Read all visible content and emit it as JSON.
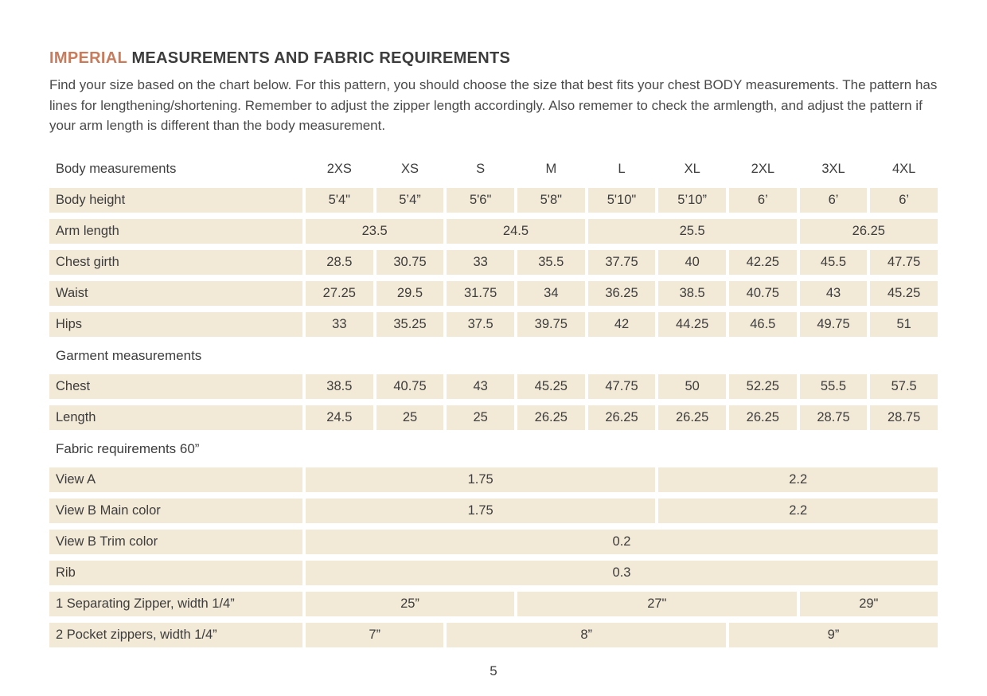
{
  "page": {
    "title_highlight": "IMPERIAL",
    "title_rest": " MEASUREMENTS AND FABRIC REQUIREMENTS",
    "intro": "Find your size based on the chart below. For this pattern, you should choose the size that best fits your chest BODY measurements. The pattern has lines for lengthening/shortening. Remember to adjust the zipper length accordingly. Also rememer to check the armlength, and adjust the pattern if your arm length is different than the body measurement.",
    "page_number": "5"
  },
  "colors": {
    "accent": "#c87c5c",
    "cell_background": "#f2e9d6",
    "text": "#3d3d3d"
  },
  "table": {
    "header": {
      "label": "Body measurements",
      "sizes": [
        "2XS",
        "XS",
        "S",
        "M",
        "L",
        "XL",
        "2XL",
        "3XL",
        "4XL"
      ]
    },
    "rows": [
      {
        "type": "data",
        "label": "Body height",
        "cells": [
          {
            "v": "5'4\"",
            "s": 1
          },
          {
            "v": "5’4”",
            "s": 1
          },
          {
            "v": "5'6\"",
            "s": 1
          },
          {
            "v": "5'8\"",
            "s": 1
          },
          {
            "v": "5'10\"",
            "s": 1
          },
          {
            "v": "5’10”",
            "s": 1
          },
          {
            "v": "6’",
            "s": 1
          },
          {
            "v": "6’",
            "s": 1
          },
          {
            "v": "6’",
            "s": 1
          }
        ]
      },
      {
        "type": "data",
        "label": "Arm length",
        "cells": [
          {
            "v": "23.5",
            "s": 2
          },
          {
            "v": "24.5",
            "s": 2
          },
          {
            "v": "25.5",
            "s": 3
          },
          {
            "v": "26.25",
            "s": 2
          }
        ]
      },
      {
        "type": "data",
        "label": "Chest girth",
        "cells": [
          {
            "v": "28.5",
            "s": 1
          },
          {
            "v": "30.75",
            "s": 1
          },
          {
            "v": "33",
            "s": 1
          },
          {
            "v": "35.5",
            "s": 1
          },
          {
            "v": "37.75",
            "s": 1
          },
          {
            "v": "40",
            "s": 1
          },
          {
            "v": "42.25",
            "s": 1
          },
          {
            "v": "45.5",
            "s": 1
          },
          {
            "v": "47.75",
            "s": 1
          }
        ]
      },
      {
        "type": "data",
        "label": "Waist",
        "cells": [
          {
            "v": "27.25",
            "s": 1
          },
          {
            "v": "29.5",
            "s": 1
          },
          {
            "v": "31.75",
            "s": 1
          },
          {
            "v": "34",
            "s": 1
          },
          {
            "v": "36.25",
            "s": 1
          },
          {
            "v": "38.5",
            "s": 1
          },
          {
            "v": "40.75",
            "s": 1
          },
          {
            "v": "43",
            "s": 1
          },
          {
            "v": "45.25",
            "s": 1
          }
        ]
      },
      {
        "type": "data",
        "label": "Hips",
        "cells": [
          {
            "v": "33",
            "s": 1
          },
          {
            "v": "35.25",
            "s": 1
          },
          {
            "v": "37.5",
            "s": 1
          },
          {
            "v": "39.75",
            "s": 1
          },
          {
            "v": "42",
            "s": 1
          },
          {
            "v": "44.25",
            "s": 1
          },
          {
            "v": "46.5",
            "s": 1
          },
          {
            "v": "49.75",
            "s": 1
          },
          {
            "v": "51",
            "s": 1
          }
        ]
      },
      {
        "type": "section",
        "label": "Garment measurements"
      },
      {
        "type": "data",
        "label": "Chest",
        "cells": [
          {
            "v": "38.5",
            "s": 1
          },
          {
            "v": "40.75",
            "s": 1
          },
          {
            "v": "43",
            "s": 1
          },
          {
            "v": "45.25",
            "s": 1
          },
          {
            "v": "47.75",
            "s": 1
          },
          {
            "v": "50",
            "s": 1
          },
          {
            "v": "52.25",
            "s": 1
          },
          {
            "v": "55.5",
            "s": 1
          },
          {
            "v": "57.5",
            "s": 1
          }
        ]
      },
      {
        "type": "data",
        "label": "Length",
        "cells": [
          {
            "v": "24.5",
            "s": 1
          },
          {
            "v": "25",
            "s": 1
          },
          {
            "v": "25",
            "s": 1
          },
          {
            "v": "26.25",
            "s": 1
          },
          {
            "v": "26.25",
            "s": 1
          },
          {
            "v": "26.25",
            "s": 1
          },
          {
            "v": "26.25",
            "s": 1
          },
          {
            "v": "28.75",
            "s": 1
          },
          {
            "v": "28.75",
            "s": 1
          }
        ]
      },
      {
        "type": "section",
        "label": "Fabric requirements 60”"
      },
      {
        "type": "data",
        "label": "View A",
        "cells": [
          {
            "v": "1.75",
            "s": 5
          },
          {
            "v": "2.2",
            "s": 4
          }
        ]
      },
      {
        "type": "data",
        "label": "View B Main color",
        "cells": [
          {
            "v": "1.75",
            "s": 5
          },
          {
            "v": "2.2",
            "s": 4
          }
        ]
      },
      {
        "type": "data",
        "label": "View B Trim color",
        "cells": [
          {
            "v": "0.2",
            "s": 9
          }
        ]
      },
      {
        "type": "data",
        "label": "Rib",
        "cells": [
          {
            "v": "0.3",
            "s": 9
          }
        ]
      },
      {
        "type": "data",
        "label": "1 Separating Zipper, width 1/4”",
        "cells": [
          {
            "v": "25”",
            "s": 3
          },
          {
            "v": "27\"",
            "s": 4
          },
          {
            "v": "29\"",
            "s": 2
          }
        ]
      },
      {
        "type": "data",
        "label": "2 Pocket zippers, width 1/4”",
        "cells": [
          {
            "v": "7”",
            "s": 2
          },
          {
            "v": "8”",
            "s": 4
          },
          {
            "v": "9”",
            "s": 3
          }
        ]
      }
    ]
  }
}
